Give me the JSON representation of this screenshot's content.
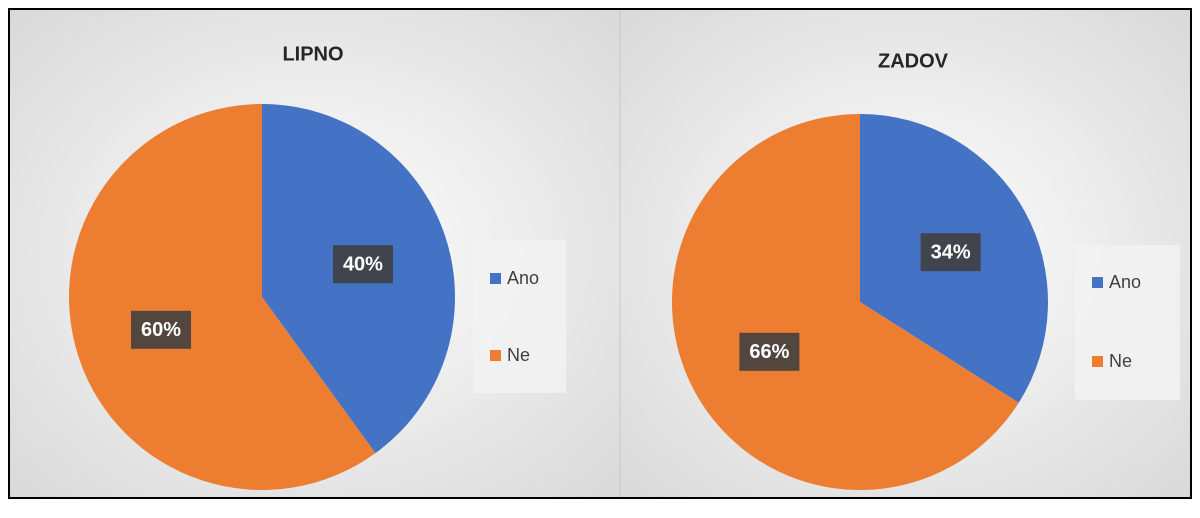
{
  "chart_data": [
    {
      "type": "pie",
      "title": "LIPNO",
      "categories": [
        "Ano",
        "Ne"
      ],
      "values": [
        40,
        60
      ],
      "value_labels": [
        "40%",
        "60%"
      ],
      "colors": [
        "#4472c4",
        "#ed7d31"
      ]
    },
    {
      "type": "pie",
      "title": "ZADOV",
      "categories": [
        "Ano",
        "Ne"
      ],
      "values": [
        34,
        66
      ],
      "value_labels": [
        "34%",
        "66%"
      ],
      "colors": [
        "#4472c4",
        "#ed7d31"
      ]
    }
  ]
}
